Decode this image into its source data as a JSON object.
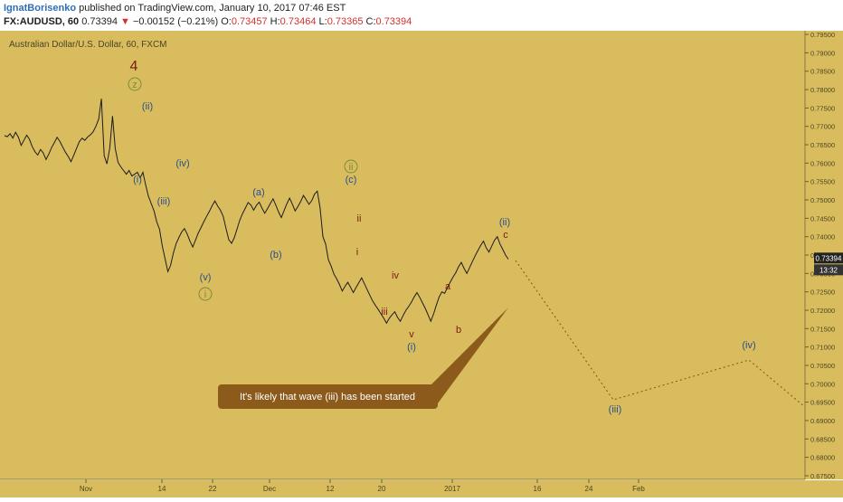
{
  "header": {
    "author": "IgnatBorisenko",
    "published": "published on TradingView.com, January 10, 2017 07:46 EST",
    "symbol": "FX:AUDUSD, 60",
    "last": "0.73394",
    "change": "−0.00152 (−0.21%)",
    "o_label": "O:",
    "o_value": "0.73457",
    "h_label": "H:",
    "h_value": "0.73464",
    "l_label": "L:",
    "l_value": "0.73365",
    "c_label": "C:",
    "c_value": "0.73394"
  },
  "colors": {
    "background": "#d8bc5e",
    "price_line": "#1c1c1c",
    "wave_blue": "#2a4f8a",
    "wave_red": "#7a1a10",
    "wave_green": "#7d8a3c",
    "callout": "#8c5a1a",
    "price_tag": "#222222"
  },
  "chart_data": {
    "type": "line",
    "title": "Australian Dollar/U.S. Dollar, 60, FXCM",
    "y_ticks": [
      "0.79500",
      "0.79000",
      "0.78500",
      "0.78000",
      "0.77500",
      "0.77000",
      "0.76500",
      "0.76000",
      "0.75500",
      "0.75000",
      "0.74500",
      "0.74000",
      "0.73500",
      "0.73000",
      "0.72500",
      "0.72000",
      "0.71500",
      "0.71000",
      "0.70500",
      "0.70000",
      "0.69500",
      "0.69000",
      "0.68500",
      "0.68000",
      "0.67500"
    ],
    "x_ticks": [
      "Nov",
      "14",
      "22",
      "Dec",
      "12",
      "20",
      "2017",
      "16",
      "24",
      "Feb"
    ],
    "ylim": [
      0.674,
      0.796
    ],
    "grid": false,
    "last_price": "0.73394",
    "countdown": "13:32",
    "series": [
      {
        "values": [
          0.7675,
          0.7672,
          0.768,
          0.7668,
          0.7684,
          0.7671,
          0.7648,
          0.7662,
          0.7676,
          0.7665,
          0.7645,
          0.7631,
          0.7622,
          0.7637,
          0.7628,
          0.761,
          0.7625,
          0.7642,
          0.7656,
          0.767,
          0.7659,
          0.7644,
          0.763,
          0.7618,
          0.7604,
          0.7621,
          0.764,
          0.7658,
          0.7668,
          0.7662,
          0.7671,
          0.7677,
          0.7685,
          0.77,
          0.772,
          0.7775,
          0.762,
          0.7598,
          0.764,
          0.7728,
          0.764,
          0.7602,
          0.759,
          0.758,
          0.757,
          0.758,
          0.7565,
          0.757,
          0.7575,
          0.756,
          0.7575,
          0.754,
          0.751,
          0.749,
          0.747,
          0.744,
          0.742,
          0.7375,
          0.734,
          0.7305,
          0.7322,
          0.7356,
          0.7381,
          0.7398,
          0.7413,
          0.7422,
          0.7407,
          0.7388,
          0.7372,
          0.7391,
          0.741,
          0.7425,
          0.7441,
          0.7455,
          0.7469,
          0.7484,
          0.7497,
          0.7483,
          0.7472,
          0.7455,
          0.7423,
          0.7392,
          0.7382,
          0.7397,
          0.7421,
          0.7445,
          0.7463,
          0.7478,
          0.7493,
          0.7486,
          0.7472,
          0.7485,
          0.7494,
          0.7478,
          0.7464,
          0.7476,
          0.749,
          0.7503,
          0.7486,
          0.7467,
          0.7452,
          0.7471,
          0.749,
          0.7505,
          0.7488,
          0.747,
          0.7482,
          0.7496,
          0.7512,
          0.75,
          0.7488,
          0.7498,
          0.7516,
          0.7524,
          0.7478,
          0.74,
          0.738,
          0.7337,
          0.732,
          0.7298,
          0.7285,
          0.727,
          0.7252,
          0.7265,
          0.7276,
          0.7262,
          0.7248,
          0.7262,
          0.7275,
          0.7288,
          0.7272,
          0.7256,
          0.724,
          0.7225,
          0.7213,
          0.7202,
          0.719,
          0.7178,
          0.7165,
          0.7178,
          0.7188,
          0.7196,
          0.718,
          0.717,
          0.7186,
          0.72,
          0.721,
          0.7222,
          0.7236,
          0.7248,
          0.7235,
          0.722,
          0.7205,
          0.7188,
          0.717,
          0.719,
          0.7214,
          0.7236,
          0.725,
          0.7246,
          0.7262,
          0.7276,
          0.729,
          0.7302,
          0.7318,
          0.733,
          0.7314,
          0.73,
          0.7316,
          0.7332,
          0.7348,
          0.7362,
          0.7376,
          0.7388,
          0.737,
          0.7358,
          0.7374,
          0.739,
          0.74,
          0.738,
          0.7365,
          0.735,
          0.7339
        ]
      }
    ]
  },
  "wave_labels": {
    "major_4": "4",
    "z": "z",
    "ii_top": "(ii)",
    "i_top": "(i)",
    "iv_top": "(iv)",
    "iii_top": "(iii)",
    "v_top": "(v)",
    "i_circle": "i",
    "a": "(a)",
    "b": "(b)",
    "ii_circle": "ii",
    "c_paren": "(c)",
    "ii_small": "ii",
    "i_small": "i",
    "iv_small": "iv",
    "iii_small": "iii",
    "v_small": "v",
    "i_paren2": "(i)",
    "a_small": "a",
    "b_small": "b",
    "c_small": "c",
    "ii_paren2": "(ii)",
    "iii_proj": "(iii)",
    "iv_proj": "(iv)"
  },
  "callout": "It's likely that wave (iii) has been started"
}
